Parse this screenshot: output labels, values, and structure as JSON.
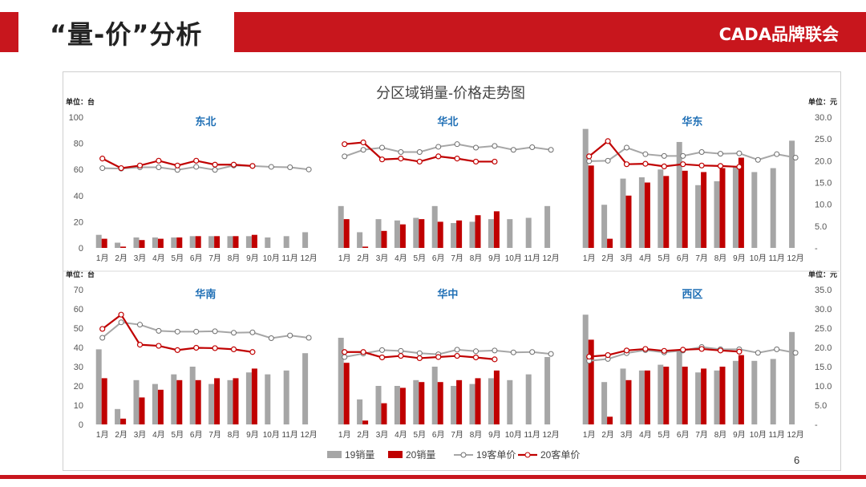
{
  "header": {
    "title": "“量-价”分析",
    "brand": "CADA品牌联会"
  },
  "page_number": "6",
  "colors": {
    "accent": "#c8161d",
    "series19": "#a6a6a6",
    "series20": "#c00000",
    "region_label": "#1f6fb5"
  },
  "chart_data": {
    "type": "bar",
    "title": "分区域销量-价格走势图",
    "categories": [
      "1月",
      "2月",
      "3月",
      "4月",
      "5月",
      "6月",
      "7月",
      "8月",
      "9月",
      "10月",
      "11月",
      "12月"
    ],
    "left_unit": "单位：台",
    "right_unit": "单位：元",
    "legend": [
      "19销量",
      "20销量",
      "19客单价",
      "20客单价"
    ],
    "legend_position": "bottom",
    "grid": false,
    "rows": [
      {
        "ylim_left": [
          0,
          100
        ],
        "left_ticks": [
          "0",
          "20",
          "40",
          "60",
          "80",
          "100"
        ],
        "ylim_right": [
          0,
          30
        ],
        "right_ticks": [
          "-",
          "5.0",
          "10.0",
          "15.0",
          "20.0",
          "25.0",
          "30.0"
        ],
        "regions": [
          {
            "name": "东北",
            "sales19": [
              10,
              4,
              8,
              8,
              8,
              9,
              9,
              9,
              9,
              8,
              9,
              12
            ],
            "sales20": [
              7,
              1,
              6,
              7,
              8,
              9,
              9,
              9,
              10
            ],
            "price19": [
              18.3,
              18.2,
              18.5,
              18.5,
              17.9,
              18.6,
              17.9,
              18.9,
              18.8,
              18.6,
              18.5,
              18.0
            ],
            "price20": [
              20.5,
              18.3,
              18.9,
              20.0,
              18.9,
              20.0,
              19.1,
              19.1,
              18.8
            ]
          },
          {
            "name": "华北",
            "sales19": [
              32,
              12,
              22,
              21,
              23,
              32,
              19,
              20,
              22,
              22,
              23,
              32
            ],
            "sales20": [
              22,
              1,
              13,
              18,
              22,
              20,
              21,
              25,
              28
            ],
            "price19": [
              21.0,
              22.5,
              23.0,
              22.0,
              22.0,
              23.2,
              23.8,
              23.0,
              23.4,
              22.5,
              23.1,
              22.5
            ],
            "price20": [
              23.8,
              24.2,
              20.3,
              20.5,
              19.8,
              21.0,
              20.5,
              19.8,
              19.8
            ]
          },
          {
            "name": "华东",
            "sales19": [
              91,
              33,
              53,
              54,
              60,
              81,
              48,
              51,
              62,
              58,
              61,
              82
            ],
            "sales20": [
              63,
              7,
              40,
              50,
              55,
              59,
              58,
              61,
              69
            ],
            "price19": [
              19.9,
              20.0,
              23.0,
              21.5,
              21.1,
              21.1,
              22.0,
              21.6,
              21.7,
              20.2,
              21.5,
              20.7
            ],
            "price20": [
              21.0,
              24.5,
              19.2,
              19.3,
              18.7,
              19.2,
              18.9,
              18.8,
              18.6
            ]
          }
        ]
      },
      {
        "ylim_left": [
          0,
          70
        ],
        "left_ticks": [
          "0",
          "10",
          "20",
          "30",
          "40",
          "50",
          "60",
          "70"
        ],
        "ylim_right": [
          0,
          35
        ],
        "right_ticks": [
          "-",
          "5.0",
          "10.0",
          "15.0",
          "20.0",
          "25.0",
          "30.0",
          "35.0"
        ],
        "regions": [
          {
            "name": "华南",
            "sales19": [
              39,
              8,
              23,
              21,
              26,
              30,
              21,
              23,
              27,
              26,
              28,
              37
            ],
            "sales20": [
              24,
              3,
              14,
              18,
              23,
              23,
              24,
              24,
              29
            ],
            "price19": [
              22.5,
              26.5,
              25.9,
              24.3,
              24.1,
              24.1,
              24.2,
              23.8,
              23.9,
              22.4,
              23.1,
              22.5
            ],
            "price20": [
              24.8,
              28.5,
              20.7,
              20.4,
              19.3,
              19.9,
              19.8,
              19.5,
              18.8
            ]
          },
          {
            "name": "华中",
            "sales19": [
              45,
              13,
              20,
              20,
              23,
              30,
              20,
              21,
              24,
              23,
              26,
              35
            ],
            "sales20": [
              32,
              2,
              11,
              19,
              22,
              22,
              23,
              24,
              28
            ],
            "price19": [
              17.5,
              18.4,
              19.3,
              19.1,
              18.5,
              18.2,
              19.4,
              19.0,
              19.2,
              18.7,
              18.8,
              18.3
            ],
            "price20": [
              18.8,
              18.8,
              17.4,
              17.8,
              17.2,
              17.5,
              17.8,
              17.4,
              16.9
            ]
          },
          {
            "name": "西区",
            "sales19": [
              57,
              22,
              29,
              28,
              31,
              38,
              27,
              28,
              33,
              33,
              34,
              48
            ],
            "sales20": [
              44,
              4,
              23,
              28,
              30,
              30,
              29,
              30,
              36
            ],
            "price19": [
              16.5,
              17.0,
              18.5,
              19.3,
              18.7,
              19.2,
              20.1,
              19.5,
              19.5,
              18.6,
              19.5,
              18.6
            ],
            "price20": [
              17.6,
              18.0,
              19.2,
              19.6,
              19.1,
              19.4,
              19.6,
              19.2,
              18.9
            ]
          }
        ]
      }
    ]
  }
}
